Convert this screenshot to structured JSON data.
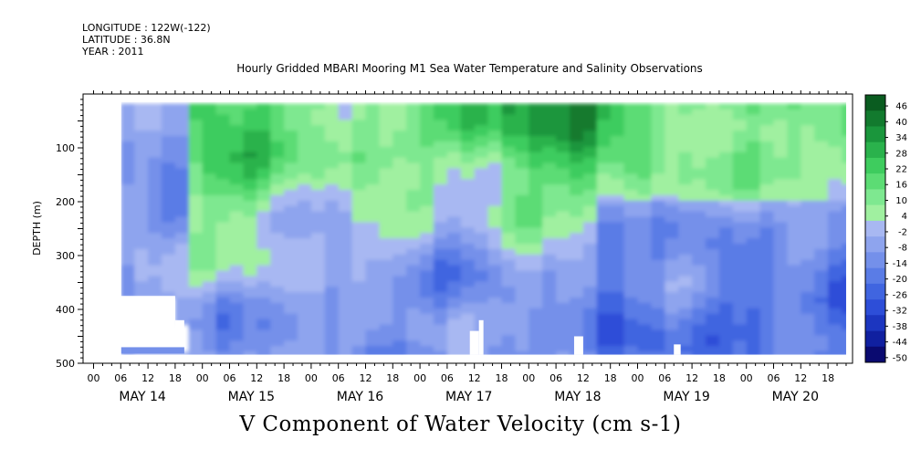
{
  "header": {
    "longitude": "LONGITUDE : 122W(-122)",
    "latitude": "LATITUDE : 36.8N",
    "year": "YEAR : 2011",
    "title": "Hourly Gridded MBARI Mooring M1 Sea Water Temperature and Salinity Observations"
  },
  "chart_data": {
    "type": "heatmap",
    "title": "V Component of Water Velocity (cm s-1)",
    "ylabel": "DEPTH (m)",
    "xlabel": "",
    "ylim": [
      500,
      0
    ],
    "y_ticks": [
      100,
      200,
      300,
      400,
      500
    ],
    "x_hour_ticks": [
      "00",
      "06",
      "12",
      "18",
      "00",
      "06",
      "12",
      "18",
      "00",
      "06",
      "12",
      "18",
      "00",
      "06",
      "12",
      "18",
      "00",
      "06",
      "12",
      "18",
      "00",
      "06",
      "12",
      "18",
      "00",
      "06",
      "12",
      "18"
    ],
    "x_day_labels": [
      "MAY 14",
      "MAY 15",
      "MAY 16",
      "MAY 17",
      "MAY 18",
      "MAY 19",
      "MAY 20"
    ],
    "colorbar_levels": [
      "46",
      "40",
      "34",
      "28",
      "22",
      "16",
      "10",
      "4",
      "-2",
      "-8",
      "-14",
      "-20",
      "-26",
      "-32",
      "-38",
      "-44",
      "-50"
    ],
    "color_range": [
      -50,
      52
    ],
    "grid": false,
    "field_summary": [
      {
        "period": "MAY 14 00-20",
        "depth": "20-500",
        "v_approx": -6
      },
      {
        "period": "MAY 15-16",
        "depth": "20-300",
        "v_approx": 18
      },
      {
        "period": "MAY 17-18",
        "depth": "20-200",
        "v_approx": 16
      },
      {
        "period": "MAY 19-20",
        "depth": "200-480",
        "v_approx": -10
      },
      {
        "period": "MAY 20 18-24",
        "depth": "60-480",
        "v_approx": -18
      }
    ]
  }
}
